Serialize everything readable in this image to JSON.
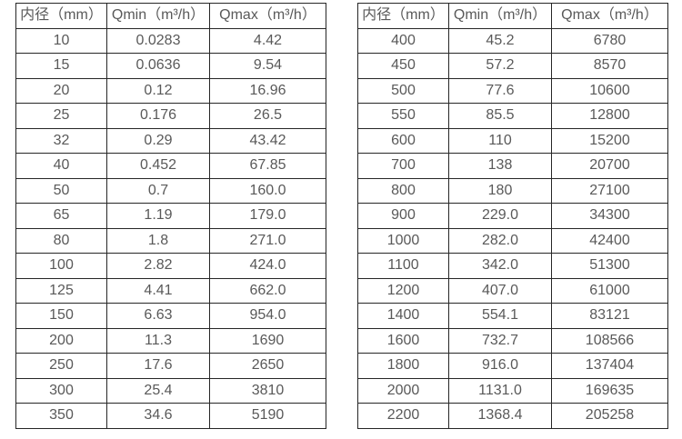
{
  "colors": {
    "background": "#ffffff",
    "border": "#262626",
    "text": "#595959"
  },
  "tables": [
    {
      "headers": [
        "内径（mm）",
        "Qmin（m³/h）",
        "Qmax（m³/h）"
      ],
      "rows": [
        [
          "10",
          "0.0283",
          "4.42"
        ],
        [
          "15",
          "0.0636",
          "9.54"
        ],
        [
          "20",
          "0.12",
          "16.96"
        ],
        [
          "25",
          "0.176",
          "26.5"
        ],
        [
          "32",
          "0.29",
          "43.42"
        ],
        [
          "40",
          "0.452",
          "67.85"
        ],
        [
          "50",
          "0.7",
          "160.0"
        ],
        [
          "65",
          "1.19",
          "179.0"
        ],
        [
          "80",
          "1.8",
          "271.0"
        ],
        [
          "100",
          "2.82",
          "424.0"
        ],
        [
          "125",
          "4.41",
          "662.0"
        ],
        [
          "150",
          "6.63",
          "954.0"
        ],
        [
          "200",
          "11.3",
          "1690"
        ],
        [
          "250",
          "17.6",
          "2650"
        ],
        [
          "300",
          "25.4",
          "3810"
        ],
        [
          "350",
          "34.6",
          "5190"
        ]
      ]
    },
    {
      "headers": [
        "内径（mm）",
        "Qmin（m³/h）",
        "Qmax（m³/h）"
      ],
      "rows": [
        [
          "400",
          "45.2",
          "6780"
        ],
        [
          "450",
          "57.2",
          "8570"
        ],
        [
          "500",
          "77.6",
          "10600"
        ],
        [
          "550",
          "85.5",
          "12800"
        ],
        [
          "600",
          "110",
          "15200"
        ],
        [
          "700",
          "138",
          "20700"
        ],
        [
          "800",
          "180",
          "27100"
        ],
        [
          "900",
          "229.0",
          "34300"
        ],
        [
          "1000",
          "282.0",
          "42400"
        ],
        [
          "1100",
          "342.0",
          "51300"
        ],
        [
          "1200",
          "407.0",
          "61000"
        ],
        [
          "1400",
          "554.1",
          "83121"
        ],
        [
          "1600",
          "732.7",
          "108566"
        ],
        [
          "1800",
          "916.0",
          "137404"
        ],
        [
          "2000",
          "1131.0",
          "169635"
        ],
        [
          "2200",
          "1368.4",
          "205258"
        ]
      ]
    }
  ]
}
